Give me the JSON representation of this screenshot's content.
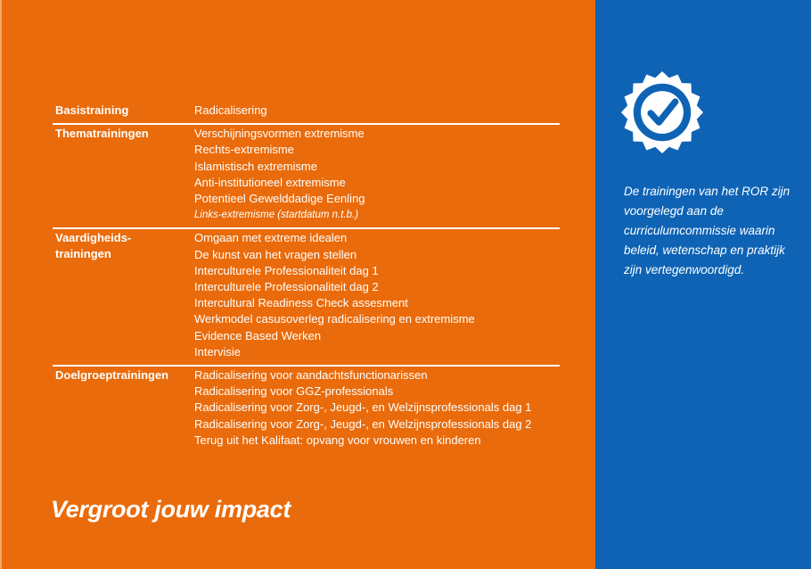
{
  "sections": [
    {
      "title": "Basistraining",
      "items": [
        "Radicalisering"
      ]
    },
    {
      "title": "Thematrainingen",
      "items": [
        "Verschijningsvormen extremisme",
        "Rechts-extremisme",
        "Islamistisch extremisme",
        "Anti-institutioneel extremisme",
        "Potentieel Gewelddadige Eenling",
        "Links-extremisme (startdatum n.t.b.)"
      ]
    },
    {
      "title": "Vaardigheids-trainingen",
      "title_lines": [
        "Vaardigheids-",
        "trainingen"
      ],
      "items": [
        "Omgaan met extreme idealen",
        "De kunst van het vragen stellen",
        "Interculturele Professionaliteit dag 1",
        "Interculturele Professionaliteit dag 2",
        "Intercultural Readiness Check assesment",
        "Werkmodel casusoverleg radicalisering en extremisme",
        "Evidence Based Werken",
        "Intervisie"
      ]
    },
    {
      "title": "Doelgroeptrainingen",
      "items": [
        "Radicalisering voor aandachtsfunctionarissen",
        "Radicalisering voor GGZ-professionals",
        "Radicalisering voor Zorg-, Jeugd-, en Welzijnsprofessionals dag 1",
        "Radicalisering voor Zorg-, Jeugd-, en Welzijnsprofessionals dag 2",
        "Terug uit het Kalifaat: opvang voor vrouwen en kinderen"
      ]
    }
  ],
  "headline": "Vergroot jouw impact",
  "note": "De trainingen van het ROR zijn voorgelegd aan de curriculumcommissie waarin beleid, wetenschap en praktijk zijn vertegenwoordigd.",
  "badge": {
    "icon": "check-badge-icon"
  },
  "colors": {
    "orange": "#EA6B0B",
    "blue": "#0E63B5",
    "white": "#FFFFFF"
  }
}
